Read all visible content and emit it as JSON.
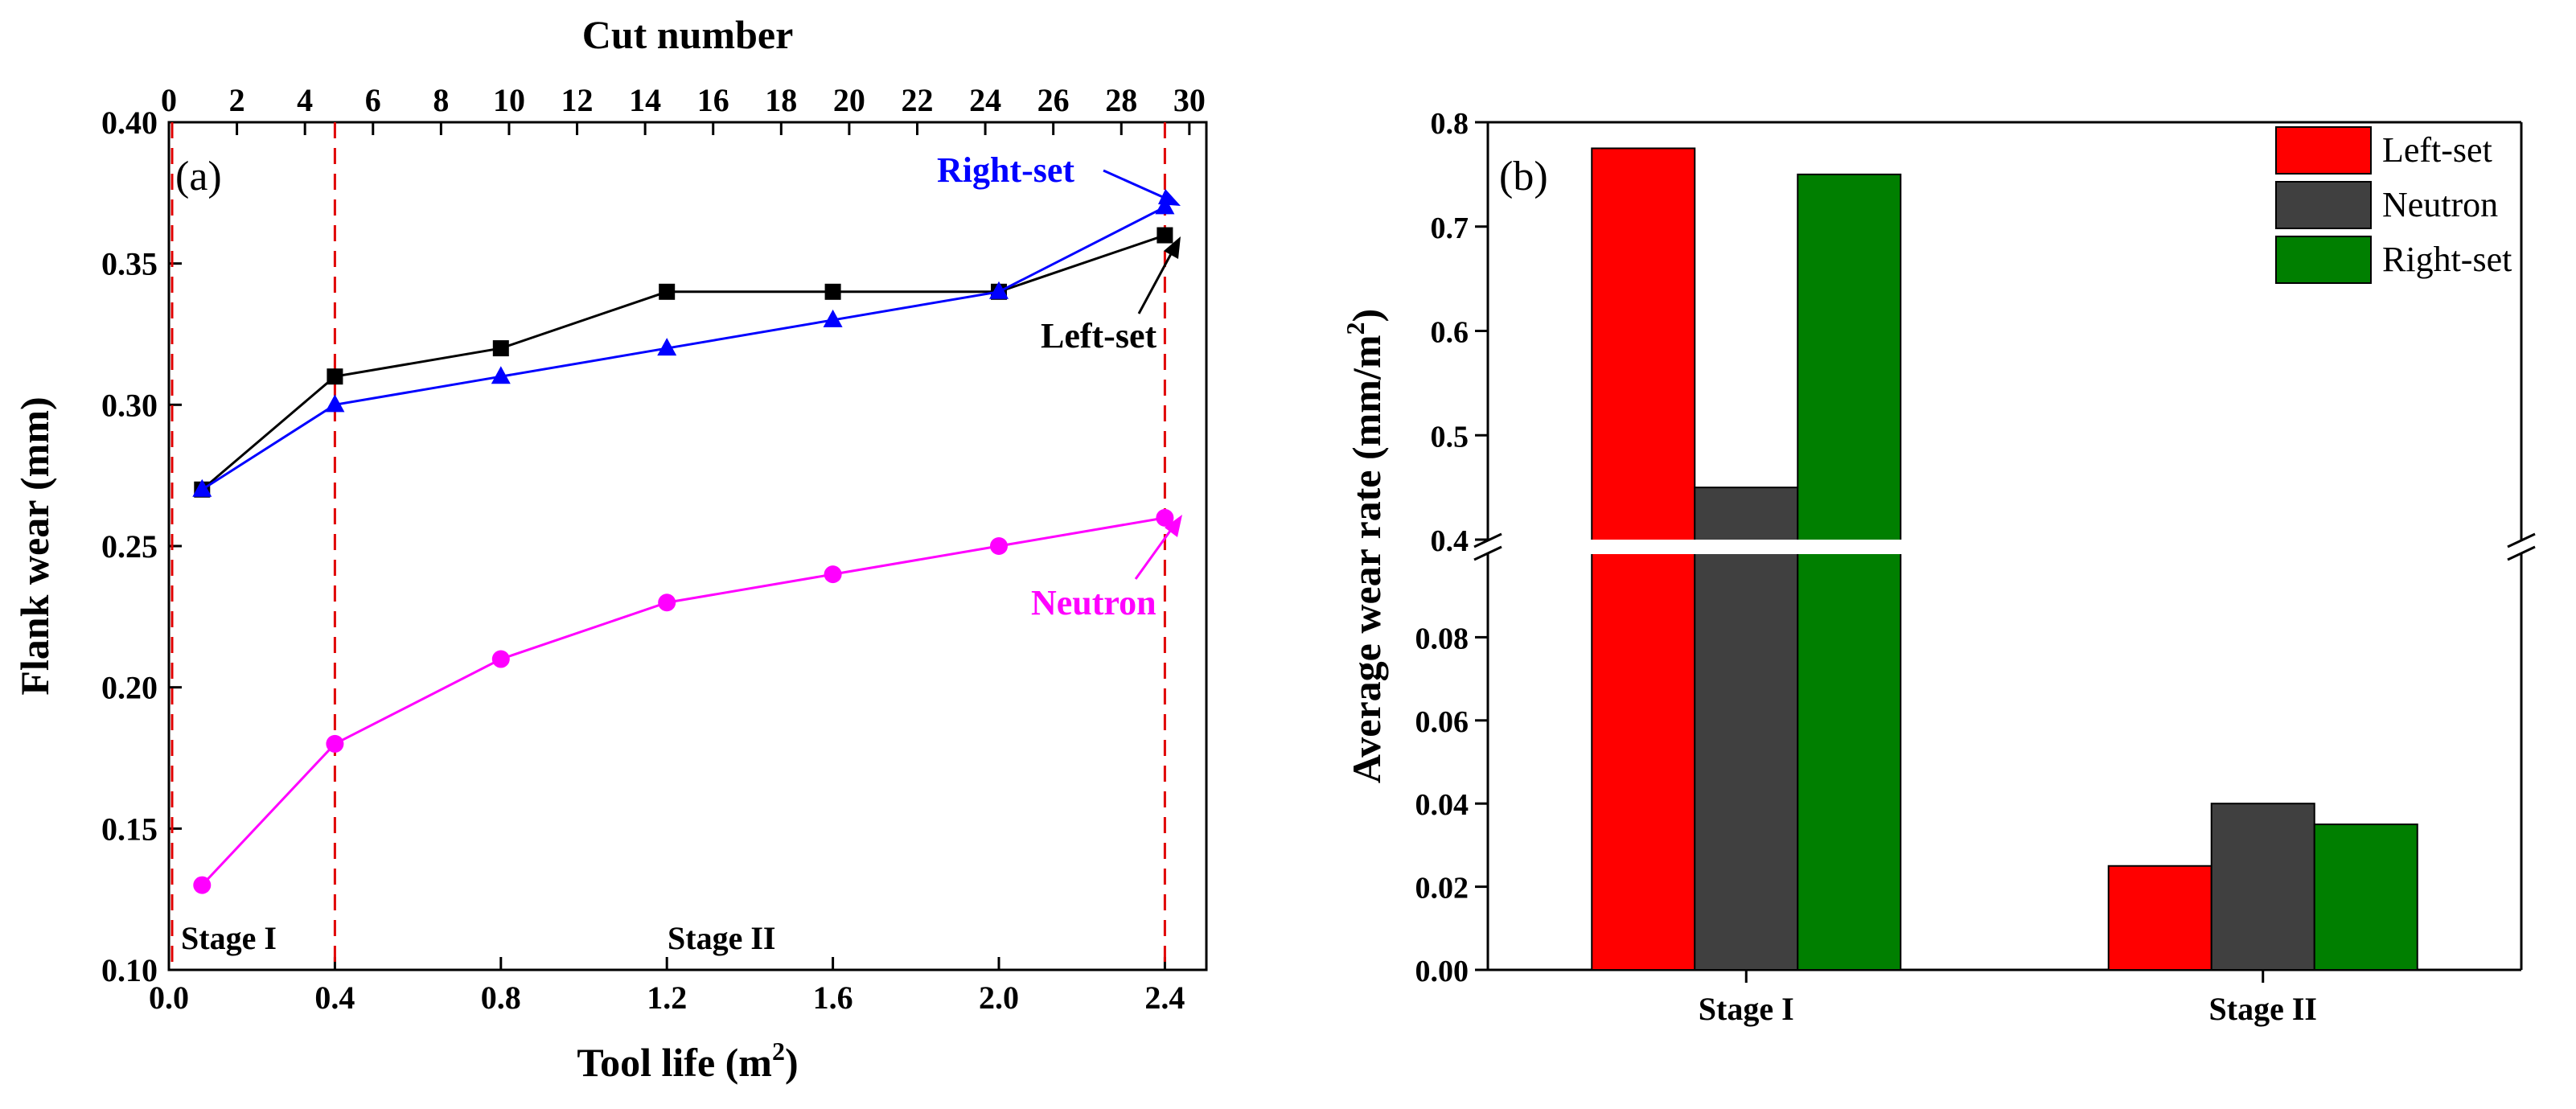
{
  "chart_data": [
    {
      "type": "line",
      "panel_label": "(a)",
      "xlabel": "Tool life (m",
      "xlabel_sup": "2",
      "xlabel_end": ")",
      "ylabel": "Flank wear (mm)",
      "x2label": "Cut number",
      "xlim": [
        0.0,
        2.5
      ],
      "ylim": [
        0.1,
        0.4
      ],
      "x2lim": [
        0,
        30.5
      ],
      "xticks": [
        "0.0",
        "0.4",
        "0.8",
        "1.2",
        "1.6",
        "2.0",
        "2.4"
      ],
      "yticks": [
        "0.10",
        "0.15",
        "0.20",
        "0.25",
        "0.30",
        "0.35",
        "0.40"
      ],
      "x2ticks": [
        "0",
        "2",
        "4",
        "6",
        "8",
        "10",
        "12",
        "14",
        "16",
        "18",
        "20",
        "22",
        "24",
        "26",
        "28",
        "30"
      ],
      "vlines": [
        0.0,
        0.4,
        2.4
      ],
      "grid": false,
      "series": [
        {
          "name": "Left-set",
          "color": "#000000",
          "marker": "square",
          "x": [
            0.08,
            0.4,
            0.8,
            1.2,
            1.6,
            2.0,
            2.4
          ],
          "y": [
            0.27,
            0.31,
            0.32,
            0.34,
            0.34,
            0.34,
            0.36
          ]
        },
        {
          "name": "Right-set",
          "color": "#0000ff",
          "marker": "triangle",
          "x": [
            0.08,
            0.4,
            0.8,
            1.2,
            1.6,
            2.0,
            2.4
          ],
          "y": [
            0.27,
            0.3,
            0.31,
            0.32,
            0.33,
            0.34,
            0.37
          ]
        },
        {
          "name": "Neutron",
          "color": "#ff00ff",
          "marker": "circle",
          "x": [
            0.08,
            0.4,
            0.8,
            1.2,
            1.6,
            2.0,
            2.4
          ],
          "y": [
            0.13,
            0.18,
            0.21,
            0.23,
            0.24,
            0.25,
            0.26
          ]
        }
      ],
      "annotations": {
        "stage_1": "Stage I",
        "stage_2": "Stage II",
        "left_set": "Left-set",
        "right_set": "Right-set",
        "neutron": "Neutron"
      }
    },
    {
      "type": "bar",
      "panel_label": "(b)",
      "ylabel": "Average wear rate (mm/m",
      "ylabel_sup": "2",
      "ylabel_end": ")",
      "categories": [
        "Stage I",
        "Stage II"
      ],
      "y_break": true,
      "ylim_lower": [
        0.0,
        0.1
      ],
      "ylim_upper": [
        0.4,
        0.8
      ],
      "yticks_lower": [
        "0.00",
        "0.02",
        "0.04",
        "0.06",
        "0.08"
      ],
      "yticks_upper": [
        "0.4",
        "0.5",
        "0.6",
        "0.7",
        "0.8"
      ],
      "legend_position": "top-right",
      "grid": false,
      "series": [
        {
          "name": "Left-set",
          "color": "#ff0000",
          "values": [
            0.775,
            0.025
          ]
        },
        {
          "name": "Neutron",
          "color": "#404040",
          "values": [
            0.45,
            0.04
          ]
        },
        {
          "name": "Right-set",
          "color": "#007f00",
          "values": [
            0.75,
            0.035
          ]
        }
      ]
    }
  ]
}
